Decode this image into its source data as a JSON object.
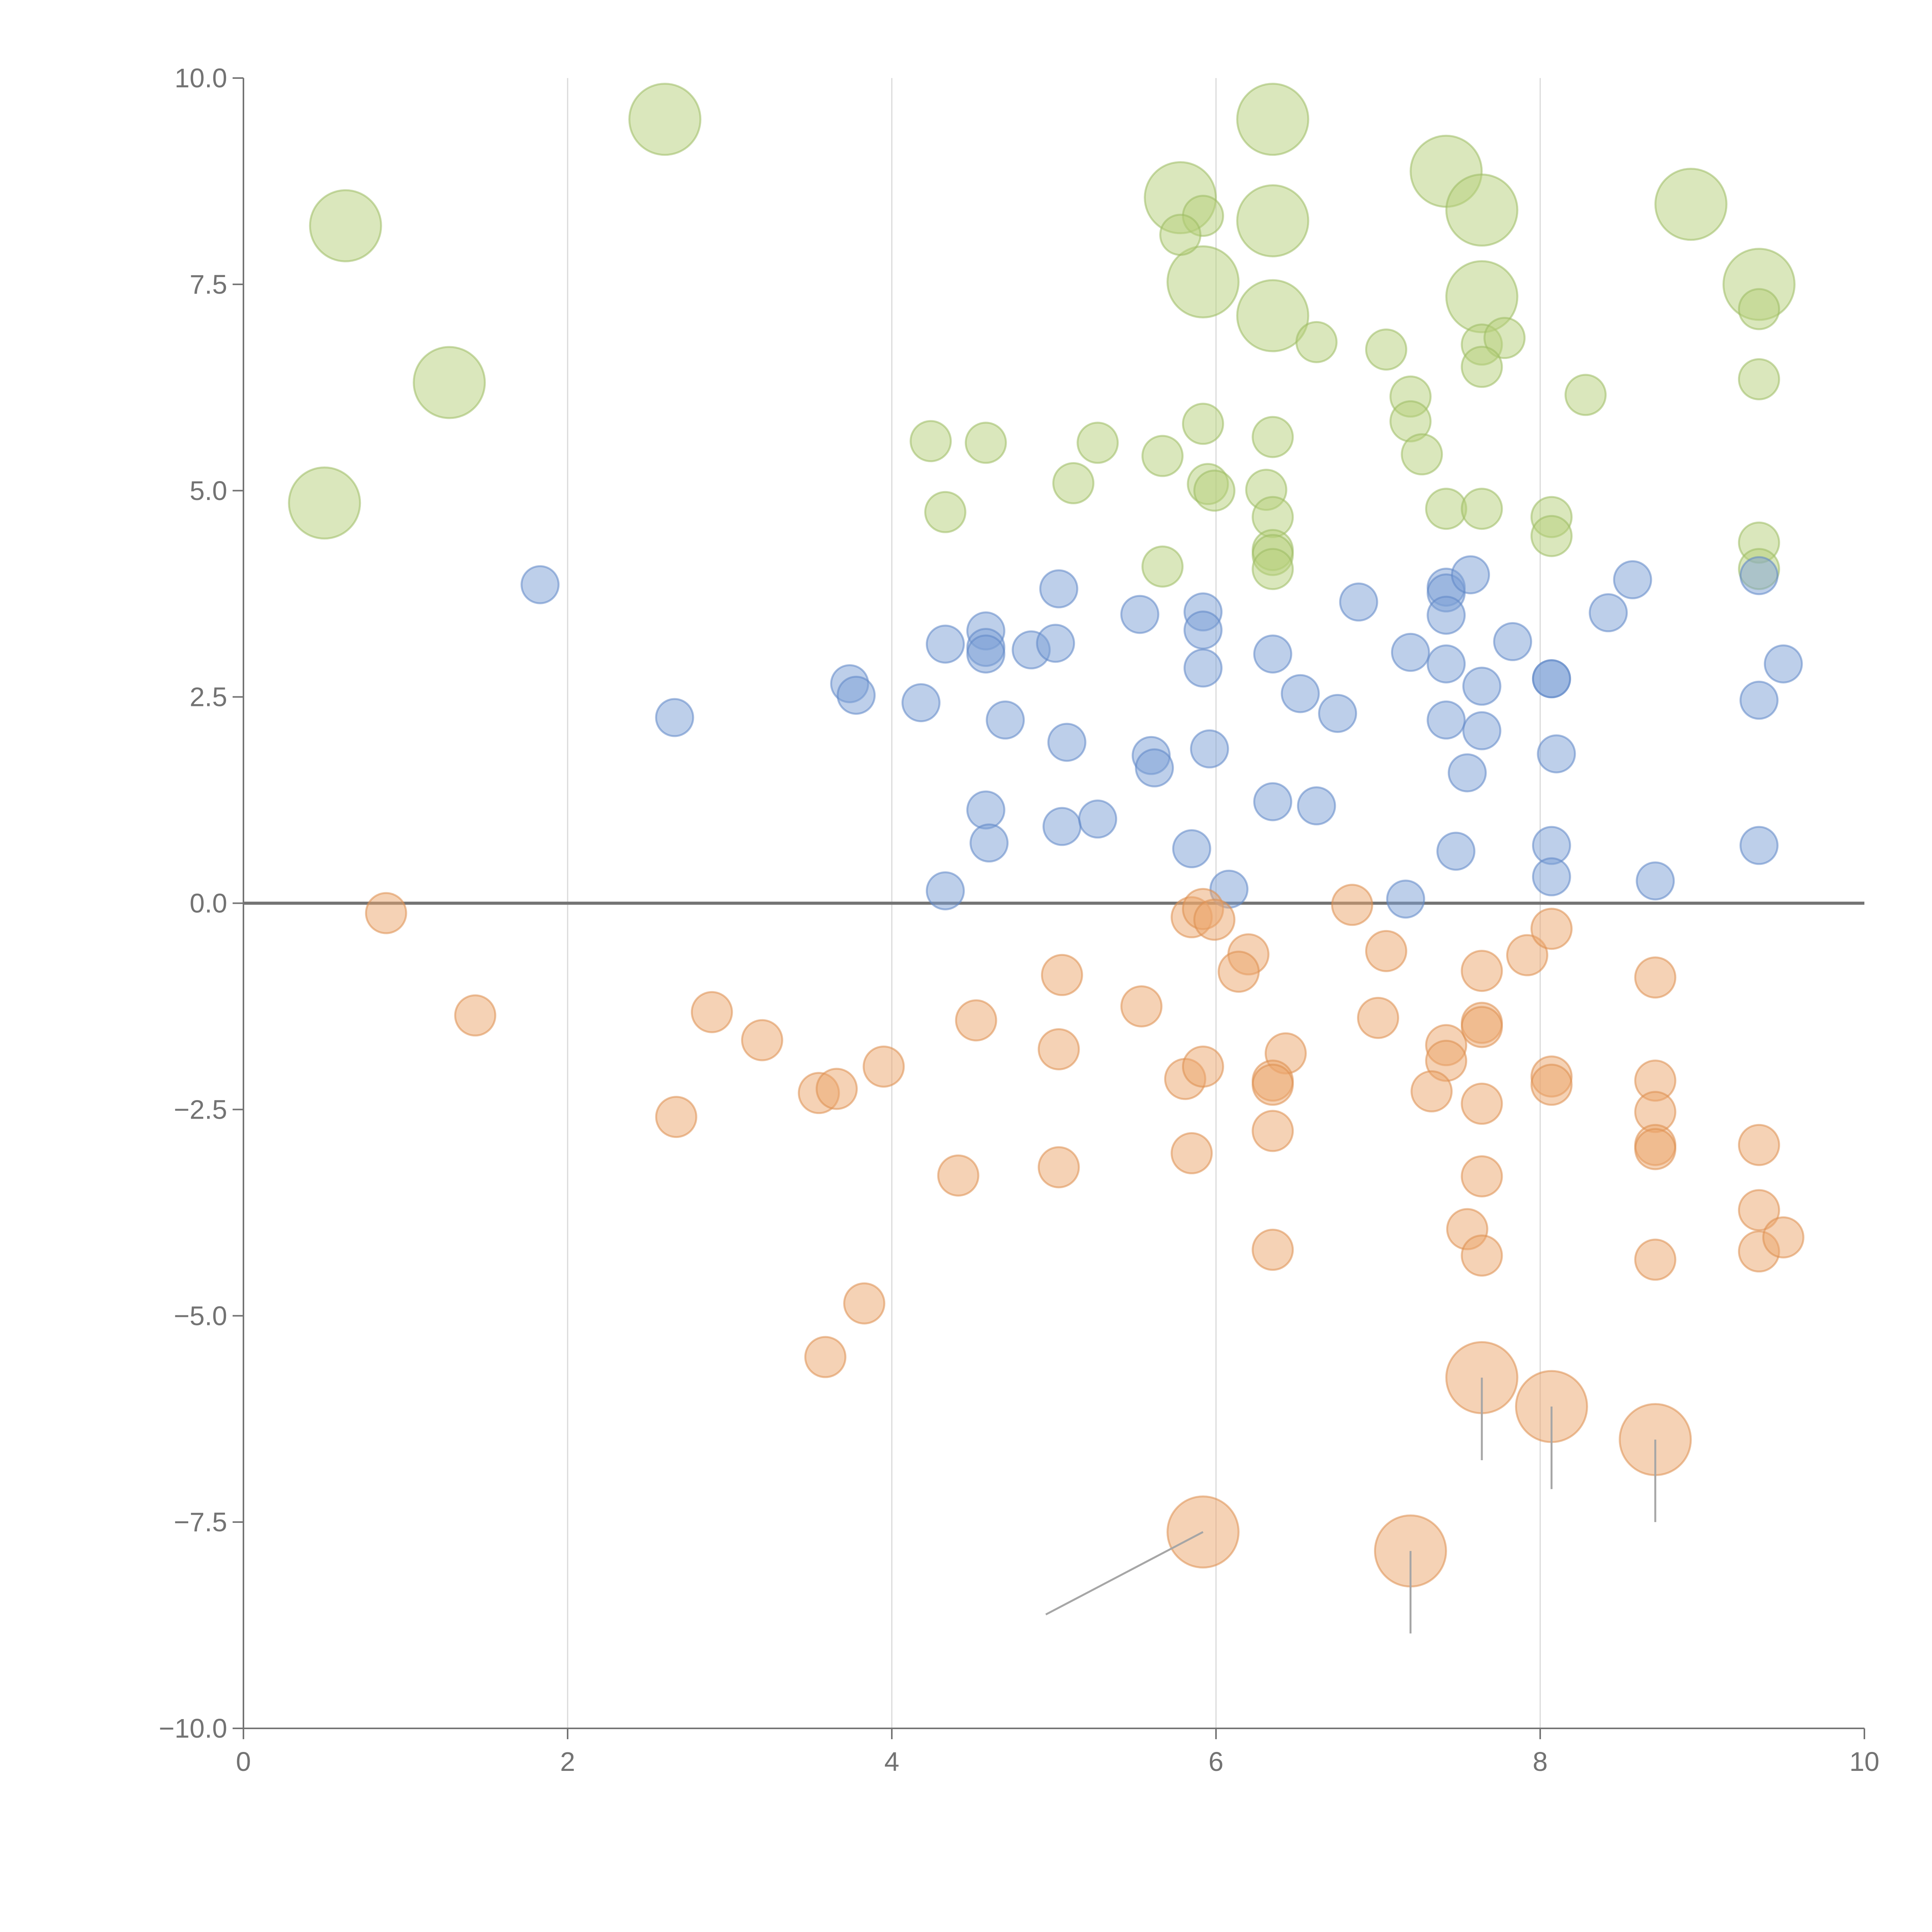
{
  "chart_data": {
    "type": "scatter",
    "title": "",
    "xlabel": "",
    "ylabel": "",
    "xlim": [
      0,
      10
    ],
    "ylim": [
      -10,
      10
    ],
    "x_ticks": [
      "0",
      "2",
      "4",
      "6",
      "8",
      "10"
    ],
    "y_ticks": [
      "−10.0",
      "−7.5",
      "−5.0",
      "−2.5",
      "0.0",
      "2.5",
      "5.0",
      "7.5",
      "10.0"
    ],
    "x_tick_values": [
      0,
      2,
      4,
      6,
      8,
      10
    ],
    "y_tick_values": [
      -10,
      -7.5,
      -5,
      -2.5,
      0,
      2.5,
      5,
      7.5,
      10
    ],
    "vertical_gridlines": [
      2,
      4,
      6,
      8
    ],
    "zero_line": 0,
    "legend": "none",
    "series": [
      {
        "name": "green",
        "color": "#b5cf7a",
        "stroke": "#9cbb62",
        "points": [
          {
            "x": 0.63,
            "y": 8.21,
            "r": 3
          },
          {
            "x": 2.6,
            "y": 9.5,
            "r": 3
          },
          {
            "x": 1.27,
            "y": 6.31,
            "r": 3
          },
          {
            "x": 0.5,
            "y": 4.85,
            "r": 3
          },
          {
            "x": 6.35,
            "y": 9.5,
            "r": 3
          },
          {
            "x": 7.42,
            "y": 8.87,
            "r": 3
          },
          {
            "x": 5.78,
            "y": 8.55,
            "r": 3
          },
          {
            "x": 6.35,
            "y": 8.27,
            "r": 3
          },
          {
            "x": 7.64,
            "y": 8.4,
            "r": 3
          },
          {
            "x": 8.93,
            "y": 8.47,
            "r": 3
          },
          {
            "x": 5.92,
            "y": 7.53,
            "r": 3
          },
          {
            "x": 7.64,
            "y": 7.35,
            "r": 3
          },
          {
            "x": 9.35,
            "y": 7.5,
            "r": 3
          },
          {
            "x": 6.35,
            "y": 7.12,
            "r": 3
          },
          {
            "x": 5.92,
            "y": 8.33,
            "r": 1
          },
          {
            "x": 5.78,
            "y": 8.1,
            "r": 1
          },
          {
            "x": 9.35,
            "y": 7.2,
            "r": 1
          },
          {
            "x": 6.62,
            "y": 6.8,
            "r": 1
          },
          {
            "x": 7.05,
            "y": 6.71,
            "r": 1
          },
          {
            "x": 7.64,
            "y": 6.77,
            "r": 1
          },
          {
            "x": 7.78,
            "y": 6.85,
            "r": 1
          },
          {
            "x": 7.64,
            "y": 6.5,
            "r": 1
          },
          {
            "x": 8.28,
            "y": 6.16,
            "r": 1
          },
          {
            "x": 9.35,
            "y": 6.35,
            "r": 1
          },
          {
            "x": 7.2,
            "y": 6.14,
            "r": 1
          },
          {
            "x": 7.2,
            "y": 5.84,
            "r": 1
          },
          {
            "x": 4.24,
            "y": 5.6,
            "r": 1
          },
          {
            "x": 4.58,
            "y": 5.58,
            "r": 1
          },
          {
            "x": 5.27,
            "y": 5.58,
            "r": 1
          },
          {
            "x": 5.92,
            "y": 5.81,
            "r": 1
          },
          {
            "x": 6.35,
            "y": 5.65,
            "r": 1
          },
          {
            "x": 5.67,
            "y": 5.42,
            "r": 1
          },
          {
            "x": 7.27,
            "y": 5.44,
            "r": 1
          },
          {
            "x": 5.12,
            "y": 5.09,
            "r": 1
          },
          {
            "x": 5.95,
            "y": 5.08,
            "r": 1
          },
          {
            "x": 5.99,
            "y": 5.0,
            "r": 1
          },
          {
            "x": 6.31,
            "y": 5.01,
            "r": 1
          },
          {
            "x": 4.33,
            "y": 4.74,
            "r": 1
          },
          {
            "x": 6.35,
            "y": 4.68,
            "r": 1
          },
          {
            "x": 7.42,
            "y": 4.78,
            "r": 1
          },
          {
            "x": 7.64,
            "y": 4.78,
            "r": 1
          },
          {
            "x": 8.07,
            "y": 4.68,
            "r": 1
          },
          {
            "x": 8.07,
            "y": 4.45,
            "r": 1
          },
          {
            "x": 9.35,
            "y": 4.37,
            "r": 1
          },
          {
            "x": 6.35,
            "y": 4.28,
            "r": 1
          },
          {
            "x": 6.35,
            "y": 4.22,
            "r": 1
          },
          {
            "x": 5.67,
            "y": 4.08,
            "r": 1
          },
          {
            "x": 6.35,
            "y": 4.05,
            "r": 1
          },
          {
            "x": 9.35,
            "y": 4.05,
            "r": 1
          }
        ]
      },
      {
        "name": "blue",
        "color": "#7b9fd6",
        "stroke": "#5f86c6",
        "points": [
          {
            "x": 1.83,
            "y": 3.86
          },
          {
            "x": 2.66,
            "y": 2.25
          },
          {
            "x": 3.74,
            "y": 2.66
          },
          {
            "x": 3.78,
            "y": 2.52
          },
          {
            "x": 4.18,
            "y": 2.43
          },
          {
            "x": 4.33,
            "y": 3.14
          },
          {
            "x": 4.58,
            "y": 3.3
          },
          {
            "x": 4.58,
            "y": 3.1
          },
          {
            "x": 4.58,
            "y": 3.02
          },
          {
            "x": 4.86,
            "y": 3.07
          },
          {
            "x": 5.01,
            "y": 3.15
          },
          {
            "x": 5.03,
            "y": 3.81
          },
          {
            "x": 4.7,
            "y": 2.22
          },
          {
            "x": 5.08,
            "y": 1.95
          },
          {
            "x": 5.53,
            "y": 3.5
          },
          {
            "x": 5.92,
            "y": 3.53
          },
          {
            "x": 5.92,
            "y": 3.31
          },
          {
            "x": 5.92,
            "y": 2.85
          },
          {
            "x": 6.35,
            "y": 3.02
          },
          {
            "x": 6.88,
            "y": 3.65
          },
          {
            "x": 7.2,
            "y": 3.04
          },
          {
            "x": 7.42,
            "y": 3.83
          },
          {
            "x": 7.42,
            "y": 3.76
          },
          {
            "x": 7.42,
            "y": 3.49
          },
          {
            "x": 7.42,
            "y": 2.9
          },
          {
            "x": 7.57,
            "y": 3.98
          },
          {
            "x": 7.83,
            "y": 3.17
          },
          {
            "x": 8.42,
            "y": 3.52
          },
          {
            "x": 8.57,
            "y": 3.92
          },
          {
            "x": 9.35,
            "y": 3.97
          },
          {
            "x": 9.5,
            "y": 2.9
          },
          {
            "x": 6.52,
            "y": 2.54
          },
          {
            "x": 6.75,
            "y": 2.3
          },
          {
            "x": 7.42,
            "y": 2.22
          },
          {
            "x": 7.64,
            "y": 2.63
          },
          {
            "x": 7.64,
            "y": 2.09
          },
          {
            "x": 8.07,
            "y": 2.72
          },
          {
            "x": 8.07,
            "y": 2.72
          },
          {
            "x": 9.35,
            "y": 2.46
          },
          {
            "x": 5.6,
            "y": 1.79
          },
          {
            "x": 5.62,
            "y": 1.64
          },
          {
            "x": 5.96,
            "y": 1.87
          },
          {
            "x": 7.55,
            "y": 1.58
          },
          {
            "x": 8.1,
            "y": 1.81
          },
          {
            "x": 4.58,
            "y": 1.13
          },
          {
            "x": 4.6,
            "y": 0.73
          },
          {
            "x": 5.05,
            "y": 0.93
          },
          {
            "x": 5.27,
            "y": 1.02
          },
          {
            "x": 6.35,
            "y": 1.23
          },
          {
            "x": 6.62,
            "y": 1.18
          },
          {
            "x": 5.85,
            "y": 0.66
          },
          {
            "x": 7.48,
            "y": 0.63
          },
          {
            "x": 8.07,
            "y": 0.7
          },
          {
            "x": 8.07,
            "y": 0.32
          },
          {
            "x": 8.71,
            "y": 0.27
          },
          {
            "x": 9.35,
            "y": 0.7
          },
          {
            "x": 4.33,
            "y": 0.15
          },
          {
            "x": 6.08,
            "y": 0.17
          },
          {
            "x": 7.17,
            "y": 0.05
          }
        ]
      },
      {
        "name": "orange",
        "color": "#eba66c",
        "stroke": "#dd8e4e",
        "points": [
          {
            "x": 0.88,
            "y": -0.12,
            "r": 1
          },
          {
            "x": 1.43,
            "y": -1.36,
            "r": 1
          },
          {
            "x": 2.89,
            "y": -1.32,
            "r": 1
          },
          {
            "x": 3.2,
            "y": -1.66,
            "r": 1
          },
          {
            "x": 3.55,
            "y": -2.3,
            "r": 1
          },
          {
            "x": 3.66,
            "y": -2.25,
            "r": 1
          },
          {
            "x": 3.95,
            "y": -1.98,
            "r": 1
          },
          {
            "x": 2.67,
            "y": -2.59,
            "r": 1
          },
          {
            "x": 4.52,
            "y": -1.42,
            "r": 1
          },
          {
            "x": 5.05,
            "y": -0.87,
            "r": 1
          },
          {
            "x": 5.03,
            "y": -1.77,
            "r": 1
          },
          {
            "x": 5.54,
            "y": -1.25,
            "r": 1
          },
          {
            "x": 5.85,
            "y": -0.17,
            "r": 1
          },
          {
            "x": 5.92,
            "y": -0.07,
            "r": 1
          },
          {
            "x": 5.99,
            "y": -0.2,
            "r": 1
          },
          {
            "x": 6.2,
            "y": -0.62,
            "r": 1
          },
          {
            "x": 6.14,
            "y": -0.83,
            "r": 1
          },
          {
            "x": 6.84,
            "y": -0.02,
            "r": 1
          },
          {
            "x": 7.05,
            "y": -0.58,
            "r": 1
          },
          {
            "x": 7.92,
            "y": -0.63,
            "r": 1
          },
          {
            "x": 8.07,
            "y": -0.31,
            "r": 1
          },
          {
            "x": 7.64,
            "y": -0.82,
            "r": 1
          },
          {
            "x": 8.71,
            "y": -0.9,
            "r": 1
          },
          {
            "x": 7.0,
            "y": -1.39,
            "r": 1
          },
          {
            "x": 7.42,
            "y": -1.72,
            "r": 1
          },
          {
            "x": 7.42,
            "y": -1.91,
            "r": 1
          },
          {
            "x": 7.64,
            "y": -1.45,
            "r": 1
          },
          {
            "x": 7.64,
            "y": -1.5,
            "r": 1
          },
          {
            "x": 6.43,
            "y": -1.82,
            "r": 1
          },
          {
            "x": 5.81,
            "y": -2.13,
            "r": 1
          },
          {
            "x": 5.92,
            "y": -1.98,
            "r": 1
          },
          {
            "x": 6.35,
            "y": -2.15,
            "r": 1
          },
          {
            "x": 6.35,
            "y": -2.2,
            "r": 1
          },
          {
            "x": 7.33,
            "y": -2.28,
            "r": 1
          },
          {
            "x": 7.64,
            "y": -2.43,
            "r": 1
          },
          {
            "x": 8.07,
            "y": -2.1,
            "r": 1
          },
          {
            "x": 8.07,
            "y": -2.2,
            "r": 1
          },
          {
            "x": 8.71,
            "y": -2.15,
            "r": 1
          },
          {
            "x": 8.71,
            "y": -2.53,
            "r": 1
          },
          {
            "x": 4.41,
            "y": -3.3,
            "r": 1
          },
          {
            "x": 5.03,
            "y": -3.2,
            "r": 1
          },
          {
            "x": 5.85,
            "y": -3.03,
            "r": 1
          },
          {
            "x": 6.35,
            "y": -2.76,
            "r": 1
          },
          {
            "x": 7.64,
            "y": -3.31,
            "r": 1
          },
          {
            "x": 8.71,
            "y": -2.93,
            "r": 1
          },
          {
            "x": 8.71,
            "y": -2.98,
            "r": 1
          },
          {
            "x": 9.35,
            "y": -2.93,
            "r": 1
          },
          {
            "x": 7.55,
            "y": -3.95,
            "r": 1
          },
          {
            "x": 7.64,
            "y": -4.27,
            "r": 1
          },
          {
            "x": 6.35,
            "y": -4.2,
            "r": 1
          },
          {
            "x": 8.71,
            "y": -4.32,
            "r": 1
          },
          {
            "x": 9.35,
            "y": -3.72,
            "r": 1
          },
          {
            "x": 9.35,
            "y": -4.22,
            "r": 1
          },
          {
            "x": 9.5,
            "y": -4.05,
            "r": 1
          },
          {
            "x": 3.83,
            "y": -4.85,
            "r": 1
          },
          {
            "x": 3.59,
            "y": -5.5,
            "r": 1
          },
          {
            "x": 7.64,
            "y": -5.75,
            "r": 3
          },
          {
            "x": 8.07,
            "y": -6.1,
            "r": 3
          },
          {
            "x": 8.71,
            "y": -6.5,
            "r": 3
          },
          {
            "x": 5.92,
            "y": -7.62,
            "r": 3
          },
          {
            "x": 7.2,
            "y": -7.85,
            "r": 3
          }
        ]
      }
    ],
    "callout_lines": [
      {
        "x1": 5.92,
        "y1": -7.62,
        "x2": 4.95,
        "y2": -8.62
      },
      {
        "x1": 7.2,
        "y1": -7.85,
        "x2": 7.2,
        "y2": -8.85
      },
      {
        "x1": 7.64,
        "y1": -5.75,
        "x2": 7.64,
        "y2": -6.75
      },
      {
        "x1": 8.07,
        "y1": -6.1,
        "x2": 8.07,
        "y2": -7.1
      },
      {
        "x1": 8.71,
        "y1": -6.5,
        "x2": 8.71,
        "y2": -7.5
      }
    ]
  }
}
